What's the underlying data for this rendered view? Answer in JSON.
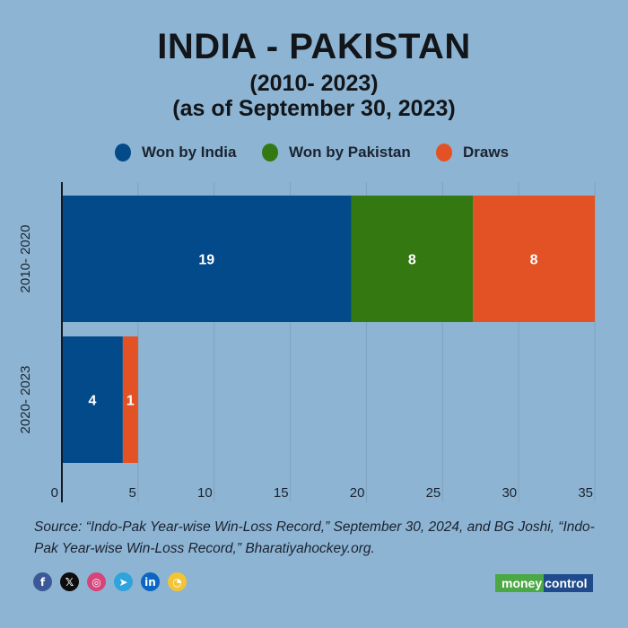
{
  "header": {
    "title": "INDIA - PAKISTAN",
    "subtitle1": "(2010- 2023)",
    "subtitle2": "(as of September 30, 2023)"
  },
  "legend": [
    {
      "label": "Won by India",
      "color": "#034a8a"
    },
    {
      "label": "Won by Pakistan",
      "color": "#347812"
    },
    {
      "label": "Draws",
      "color": "#e35224"
    }
  ],
  "chart_data": {
    "type": "bar",
    "orientation": "horizontal",
    "stacked": true,
    "title": "INDIA - PAKISTAN (2010- 2023) (as of September 30, 2023)",
    "categories": [
      "2010- 2020",
      "2020- 2023"
    ],
    "series": [
      {
        "name": "Won by India",
        "color": "#034a8a",
        "values": [
          19,
          4
        ]
      },
      {
        "name": "Won by Pakistan",
        "color": "#347812",
        "values": [
          8,
          0
        ]
      },
      {
        "name": "Draws",
        "color": "#e35224",
        "values": [
          8,
          1
        ]
      }
    ],
    "xlim": [
      0,
      35
    ],
    "xticks": [
      0,
      5,
      10,
      15,
      20,
      25,
      30,
      35
    ],
    "xlabel": "",
    "ylabel": "",
    "grid": true,
    "legend_position": "top",
    "data_labels": true
  },
  "source": "Source: “Indo-Pak Year-wise Win-Loss Record,” September 30, 2024, and BG Joshi, “Indo-Pak Year-wise Win-Loss Record,” Bharatiyahockey.org.",
  "social": [
    {
      "name": "facebook-icon",
      "glyph": "f",
      "color": "#3b5998"
    },
    {
      "name": "x-icon",
      "glyph": "𝕏",
      "color": "#0d0d0d"
    },
    {
      "name": "instagram-icon",
      "glyph": "◎",
      "color": "#d6447a"
    },
    {
      "name": "telegram-icon",
      "glyph": "➤",
      "color": "#2fa3dc"
    },
    {
      "name": "linkedin-icon",
      "glyph": "in",
      "color": "#0a66c2"
    },
    {
      "name": "koo-icon",
      "glyph": "◔",
      "color": "#f3c534"
    }
  ],
  "brand": {
    "part1": "money",
    "part2": "control"
  }
}
